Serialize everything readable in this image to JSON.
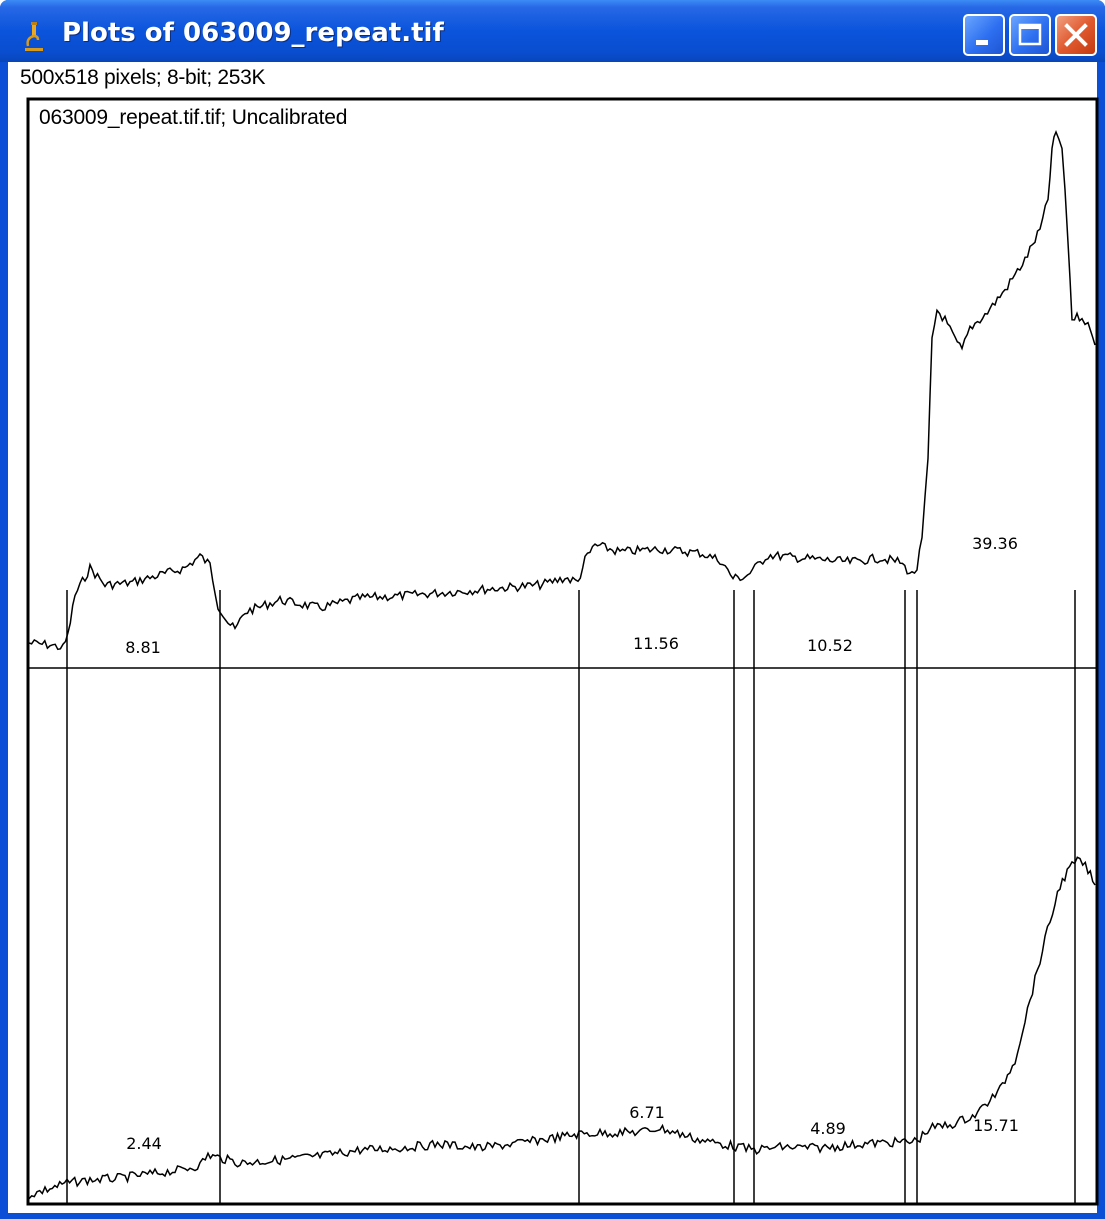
{
  "window": {
    "title": "Plots of 063009_repeat.tif",
    "icon": "imagej-microscope-icon",
    "buttons": {
      "minimize": "minimize-icon",
      "maximize": "maximize-icon",
      "close": "close-icon"
    },
    "colors": {
      "titlebar": "#0a54dc",
      "close": "#e05a30",
      "icon": "#d89a1c"
    }
  },
  "info_line": "500x518 pixels; 8-bit; 253K",
  "plot_label": "063009_repeat.tif.tif; Uncalibrated",
  "values": {
    "upper": [
      "8.81",
      "11.56",
      "10.52",
      "39.36"
    ],
    "lower": [
      "2.44",
      "6.71",
      "4.89",
      "15.71"
    ]
  }
}
